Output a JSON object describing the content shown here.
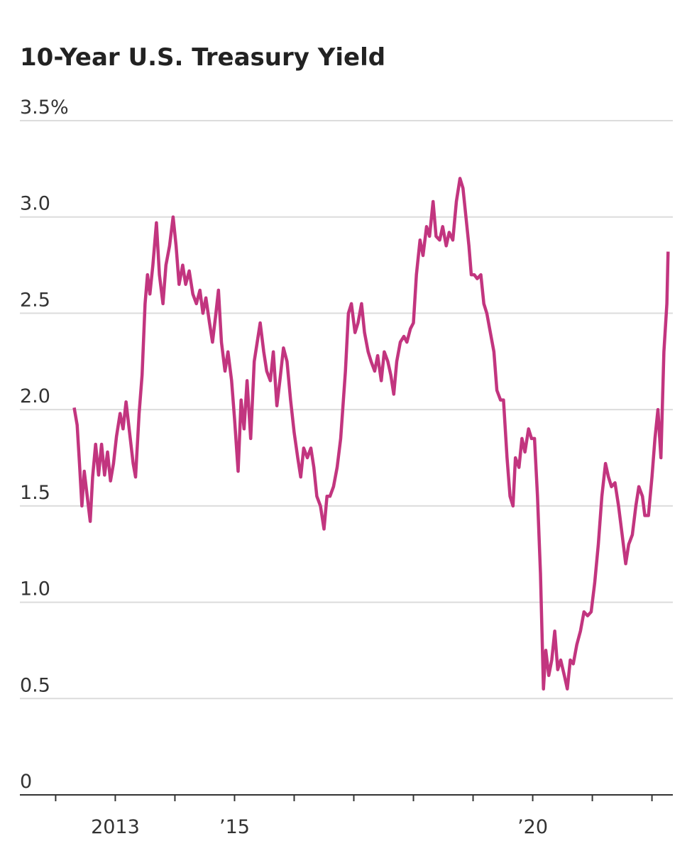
{
  "chart_data": {
    "type": "line",
    "title": "10-Year U.S. Treasury Yield",
    "xlim": [
      2011.4,
      2022.35
    ],
    "xticks": [
      {
        "value": 2013,
        "label": "2013"
      },
      {
        "value": 2015,
        "label": "’15"
      },
      {
        "value": 2020,
        "label": "’20"
      }
    ],
    "xminor_ticks": [
      2012,
      2014,
      2016,
      2017,
      2018,
      2019,
      2021,
      2022
    ],
    "ylim": [
      0,
      3.5
    ],
    "yticks": [
      0,
      0.5,
      {
        "value": 1,
        "label": "1.0"
      },
      1.5,
      {
        "value": 2,
        "label": "2.0"
      },
      2.5,
      {
        "value": 3,
        "label": "3.0"
      },
      {
        "value": 3.5,
        "label": "3.5%"
      }
    ],
    "grid": true,
    "series": [
      {
        "color": "#c2357f",
        "x": [
          2012.31,
          2012.36,
          2012.4,
          2012.44,
          2012.48,
          2012.53,
          2012.58,
          2012.62,
          2012.67,
          2012.72,
          2012.77,
          2012.82,
          2012.87,
          2012.92,
          2012.97,
          2013.02,
          2013.08,
          2013.13,
          2013.18,
          2013.24,
          2013.3,
          2013.34,
          2013.4,
          2013.45,
          2013.5,
          2013.54,
          2013.58,
          2013.63,
          2013.69,
          2013.74,
          2013.8,
          2013.85,
          2013.91,
          2013.97,
          2014.02,
          2014.07,
          2014.13,
          2014.18,
          2014.24,
          2014.3,
          2014.36,
          2014.42,
          2014.47,
          2014.52,
          2014.58,
          2014.63,
          2014.68,
          2014.73,
          2014.78,
          2014.84,
          2014.89,
          2014.95,
          2015.0,
          2015.06,
          2015.11,
          2015.16,
          2015.21,
          2015.27,
          2015.33,
          2015.38,
          2015.43,
          2015.49,
          2015.54,
          2015.6,
          2015.65,
          2015.71,
          2015.76,
          2015.82,
          2015.88,
          2015.94,
          2016.0,
          2016.06,
          2016.11,
          2016.16,
          2016.22,
          2016.28,
          2016.33,
          2016.38,
          2016.44,
          2016.5,
          2016.55,
          2016.6,
          2016.66,
          2016.72,
          2016.78,
          2016.86,
          2016.91,
          2016.96,
          2017.02,
          2017.07,
          2017.13,
          2017.18,
          2017.24,
          2017.29,
          2017.35,
          2017.4,
          2017.46,
          2017.51,
          2017.57,
          2017.62,
          2017.67,
          2017.72,
          2017.78,
          2017.84,
          2017.89,
          2017.95,
          2018.0,
          2018.05,
          2018.11,
          2018.16,
          2018.22,
          2018.27,
          2018.33,
          2018.38,
          2018.44,
          2018.49,
          2018.55,
          2018.6,
          2018.66,
          2018.72,
          2018.78,
          2018.83,
          2018.88,
          2018.93,
          2018.97,
          2019.02,
          2019.07,
          2019.13,
          2019.18,
          2019.23,
          2019.29,
          2019.35,
          2019.4,
          2019.46,
          2019.51,
          2019.57,
          2019.62,
          2019.67,
          2019.71,
          2019.77,
          2019.82,
          2019.87,
          2019.93,
          2019.98,
          2020.03,
          2020.08,
          2020.13,
          2020.18,
          2020.22,
          2020.27,
          2020.32,
          2020.37,
          2020.42,
          2020.47,
          2020.53,
          2020.58,
          2020.63,
          2020.68,
          2020.74,
          2020.8,
          2020.86,
          2020.92,
          2020.98,
          2021.04,
          2021.1,
          2021.16,
          2021.22,
          2021.27,
          2021.32,
          2021.38,
          2021.44,
          2021.5,
          2021.56,
          2021.61,
          2021.67,
          2021.73,
          2021.78,
          2021.84,
          2021.88,
          2021.94,
          2022.0,
          2022.05,
          2022.1,
          2022.15,
          2022.2,
          2022.25,
          2022.27
        ],
        "values": [
          2.01,
          1.92,
          1.72,
          1.5,
          1.68,
          1.55,
          1.42,
          1.65,
          1.82,
          1.66,
          1.82,
          1.66,
          1.78,
          1.63,
          1.72,
          1.86,
          1.98,
          1.9,
          2.04,
          1.88,
          1.72,
          1.65,
          1.98,
          2.18,
          2.55,
          2.7,
          2.6,
          2.75,
          2.97,
          2.7,
          2.55,
          2.75,
          2.85,
          3.0,
          2.85,
          2.65,
          2.75,
          2.65,
          2.72,
          2.6,
          2.55,
          2.62,
          2.5,
          2.58,
          2.45,
          2.35,
          2.48,
          2.62,
          2.35,
          2.2,
          2.3,
          2.15,
          1.95,
          1.68,
          2.05,
          1.9,
          2.15,
          1.85,
          2.25,
          2.35,
          2.45,
          2.3,
          2.2,
          2.15,
          2.3,
          2.02,
          2.15,
          2.32,
          2.25,
          2.05,
          1.88,
          1.75,
          1.65,
          1.8,
          1.75,
          1.8,
          1.7,
          1.55,
          1.5,
          1.38,
          1.55,
          1.55,
          1.6,
          1.7,
          1.85,
          2.2,
          2.5,
          2.55,
          2.4,
          2.45,
          2.55,
          2.4,
          2.3,
          2.25,
          2.2,
          2.28,
          2.15,
          2.3,
          2.25,
          2.18,
          2.08,
          2.25,
          2.35,
          2.38,
          2.35,
          2.42,
          2.45,
          2.7,
          2.88,
          2.8,
          2.95,
          2.9,
          3.08,
          2.9,
          2.88,
          2.95,
          2.85,
          2.92,
          2.88,
          3.08,
          3.2,
          3.15,
          3.0,
          2.85,
          2.7,
          2.7,
          2.68,
          2.7,
          2.55,
          2.5,
          2.4,
          2.3,
          2.1,
          2.05,
          2.05,
          1.75,
          1.55,
          1.5,
          1.75,
          1.7,
          1.85,
          1.78,
          1.9,
          1.85,
          1.85,
          1.55,
          1.15,
          0.55,
          0.75,
          0.62,
          0.7,
          0.85,
          0.65,
          0.7,
          0.62,
          0.55,
          0.7,
          0.68,
          0.78,
          0.85,
          0.95,
          0.93,
          0.95,
          1.1,
          1.3,
          1.55,
          1.72,
          1.65,
          1.6,
          1.62,
          1.5,
          1.35,
          1.2,
          1.3,
          1.35,
          1.5,
          1.6,
          1.55,
          1.45,
          1.45,
          1.65,
          1.85,
          2.0,
          1.75,
          2.3,
          2.55,
          2.82
        ]
      }
    ]
  }
}
